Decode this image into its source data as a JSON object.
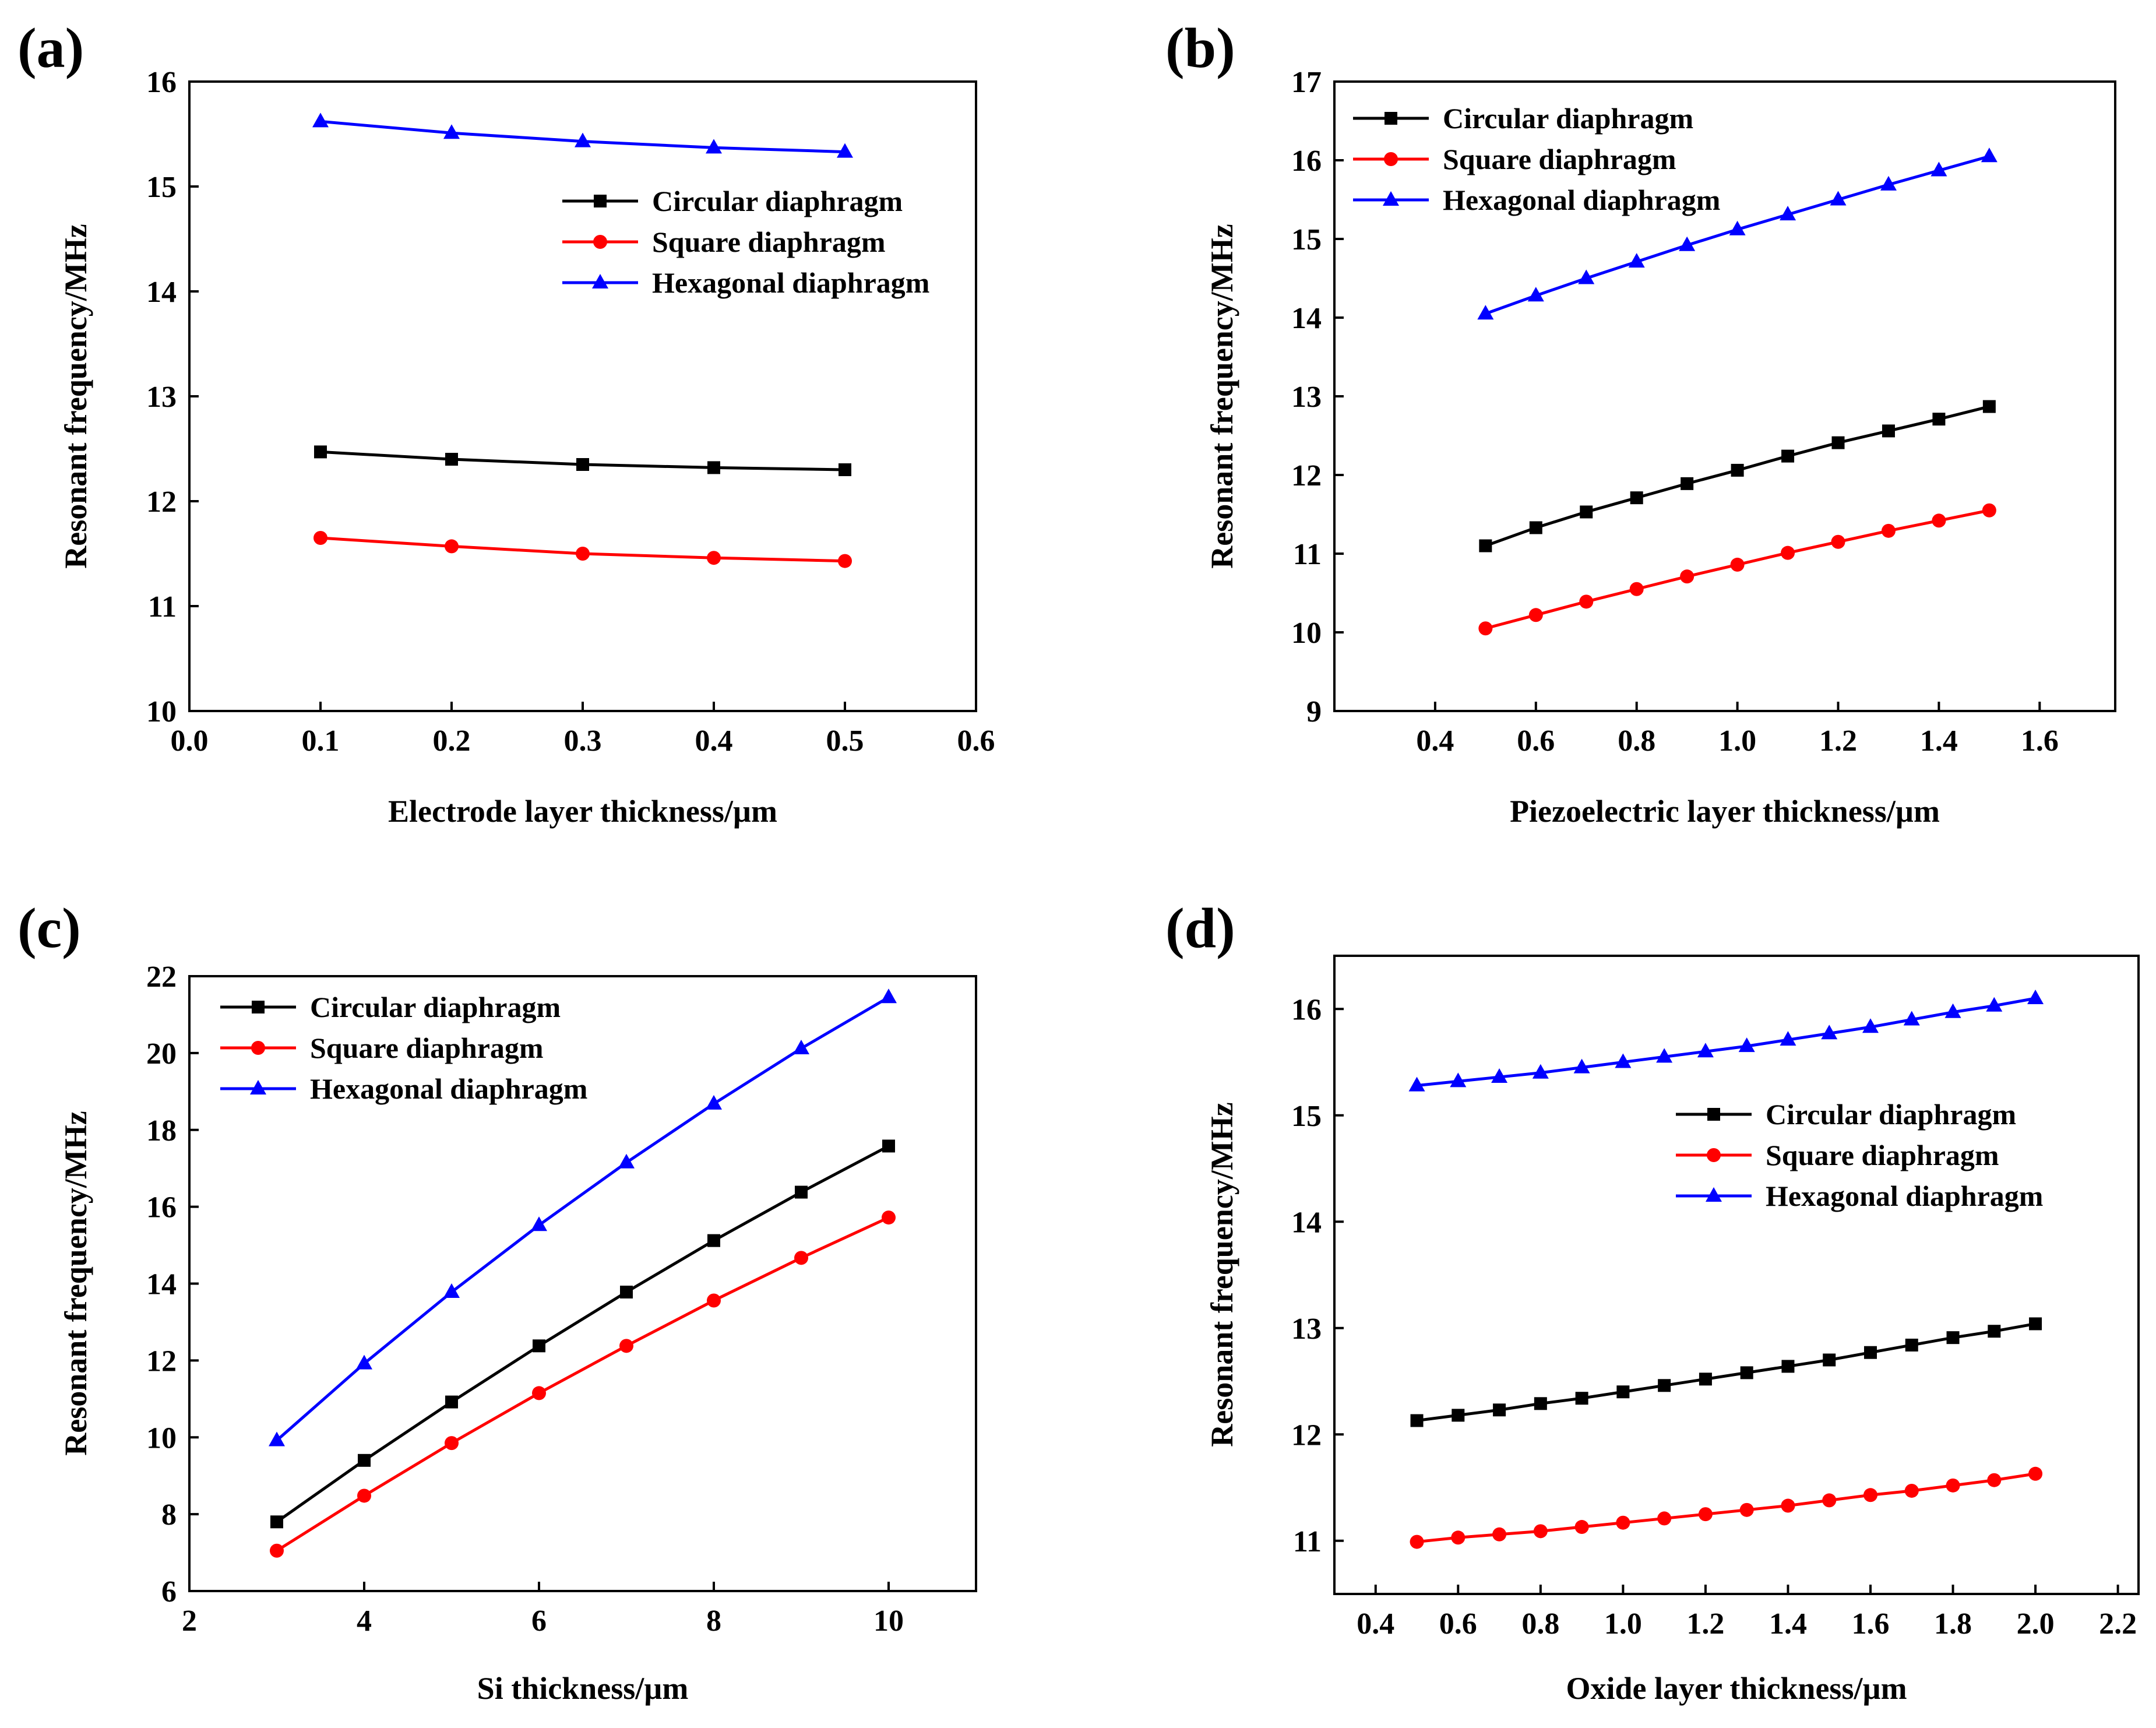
{
  "colors": {
    "circular": "#000000",
    "square": "#ff0000",
    "hexagonal": "#0000ff"
  },
  "chart_data": [
    {
      "type": "line",
      "panel_label": "(a)",
      "xlabel": "Electrode layer thickness/µm",
      "ylabel": "Resonant frequency/MHz",
      "xlim": [
        0.0,
        0.6
      ],
      "ylim": [
        10,
        16
      ],
      "xticks": [
        "0.0",
        "0.1",
        "0.2",
        "0.3",
        "0.4",
        "0.5",
        "0.6"
      ],
      "yticks": [
        "10",
        "11",
        "12",
        "13",
        "14",
        "15",
        "16"
      ],
      "legend_position": "upper-right",
      "x": [
        0.1,
        0.2,
        0.3,
        0.4,
        0.5
      ],
      "series": [
        {
          "name": "Circular diaphragm",
          "marker": "square",
          "values": [
            12.47,
            12.4,
            12.35,
            12.32,
            12.3
          ]
        },
        {
          "name": "Square diaphragm",
          "marker": "circle",
          "values": [
            11.65,
            11.57,
            11.5,
            11.46,
            11.43
          ]
        },
        {
          "name": "Hexagonal diaphragm",
          "marker": "triangle",
          "values": [
            15.62,
            15.51,
            15.43,
            15.37,
            15.33
          ]
        }
      ]
    },
    {
      "type": "line",
      "panel_label": "(b)",
      "xlabel": "Piezoelectric layer thickness/µm",
      "ylabel": "Resonant frequency/MHz",
      "xlim": [
        0.2,
        1.75
      ],
      "ylim": [
        9,
        17
      ],
      "xticks": [
        "0.4",
        "0.6",
        "0.8",
        "1.0",
        "1.2",
        "1.4",
        "1.6"
      ],
      "yticks": [
        "9",
        "10",
        "11",
        "12",
        "13",
        "14",
        "15",
        "16",
        "17"
      ],
      "legend_position": "upper-left",
      "x": [
        0.5,
        0.6,
        0.7,
        0.8,
        0.9,
        1.0,
        1.1,
        1.2,
        1.3,
        1.4,
        1.5
      ],
      "series": [
        {
          "name": "Circular diaphragm",
          "marker": "square",
          "values": [
            11.1,
            11.33,
            11.53,
            11.71,
            11.89,
            12.06,
            12.24,
            12.41,
            12.56,
            12.71,
            12.87
          ]
        },
        {
          "name": "Square diaphragm",
          "marker": "circle",
          "values": [
            10.05,
            10.22,
            10.39,
            10.55,
            10.71,
            10.86,
            11.01,
            11.15,
            11.29,
            11.42,
            11.55
          ]
        },
        {
          "name": "Hexagonal diaphragm",
          "marker": "triangle",
          "values": [
            14.05,
            14.28,
            14.5,
            14.71,
            14.92,
            15.12,
            15.31,
            15.5,
            15.69,
            15.87,
            16.05
          ]
        }
      ]
    },
    {
      "type": "line",
      "panel_label": "(c)",
      "xlabel": "Si thickness/µm",
      "ylabel": "Resonant frequency/MHz",
      "xlim": [
        2,
        11
      ],
      "ylim": [
        6,
        22
      ],
      "xticks": [
        "2",
        "4",
        "6",
        "8",
        "10"
      ],
      "yticks": [
        "6",
        "8",
        "10",
        "12",
        "14",
        "16",
        "18",
        "20",
        "22"
      ],
      "legend_position": "upper-left",
      "x": [
        3,
        4,
        5,
        6,
        7,
        8,
        9,
        10
      ],
      "series": [
        {
          "name": "Circular diaphragm",
          "marker": "square",
          "values": [
            7.8,
            9.4,
            10.92,
            12.38,
            13.78,
            15.12,
            16.38,
            17.58
          ]
        },
        {
          "name": "Square diaphragm",
          "marker": "circle",
          "values": [
            7.05,
            8.48,
            9.85,
            11.15,
            12.38,
            13.56,
            14.67,
            15.72
          ]
        },
        {
          "name": "Hexagonal diaphragm",
          "marker": "triangle",
          "values": [
            9.92,
            11.92,
            13.78,
            15.52,
            17.15,
            18.68,
            20.12,
            21.45
          ]
        }
      ]
    },
    {
      "type": "line",
      "panel_label": "(d)",
      "xlabel": "Oxide layer thickness/µm",
      "ylabel": "Resonant frequency/MHz",
      "xlim": [
        0.3,
        2.25
      ],
      "ylim": [
        10.5,
        16.5
      ],
      "xticks": [
        "0.4",
        "0.6",
        "0.8",
        "1.0",
        "1.2",
        "1.4",
        "1.6",
        "1.8",
        "2.0",
        "2.2"
      ],
      "yticks": [
        "11",
        "12",
        "13",
        "14",
        "15",
        "16"
      ],
      "legend_position": "center-right",
      "x": [
        0.5,
        0.6,
        0.7,
        0.8,
        0.9,
        1.0,
        1.1,
        1.2,
        1.3,
        1.4,
        1.5,
        1.6,
        1.7,
        1.8,
        1.9,
        2.0
      ],
      "series": [
        {
          "name": "Circular diaphragm",
          "marker": "square",
          "values": [
            12.13,
            12.18,
            12.23,
            12.29,
            12.34,
            12.4,
            12.46,
            12.52,
            12.58,
            12.64,
            12.7,
            12.77,
            12.84,
            12.91,
            12.97,
            13.04
          ]
        },
        {
          "name": "Square diaphragm",
          "marker": "circle",
          "values": [
            10.99,
            11.03,
            11.06,
            11.09,
            11.13,
            11.17,
            11.21,
            11.25,
            11.29,
            11.33,
            11.38,
            11.43,
            11.47,
            11.52,
            11.57,
            11.63
          ]
        },
        {
          "name": "Hexagonal diaphragm",
          "marker": "triangle",
          "values": [
            15.28,
            15.32,
            15.36,
            15.4,
            15.45,
            15.5,
            15.55,
            15.6,
            15.65,
            15.71,
            15.77,
            15.83,
            15.9,
            15.97,
            16.03,
            16.1
          ]
        }
      ]
    }
  ]
}
